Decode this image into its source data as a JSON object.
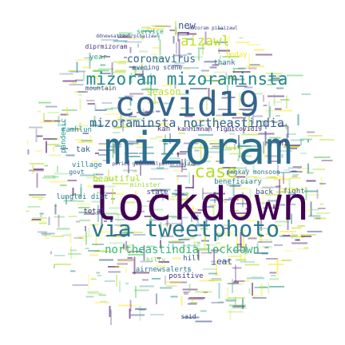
{
  "palette": [
    "#440154",
    "#3b528b",
    "#21918c",
    "#5ec962",
    "#b5de2b",
    "#fde725"
  ],
  "words": [
    {
      "text": "mizoram",
      "color": "#2c6f8e"
    },
    {
      "text": "lockdown",
      "color": "#440154"
    },
    {
      "text": "covid19",
      "color": "#33638d"
    },
    {
      "text": "via tweetphoto",
      "color": "#2a788e"
    },
    {
      "text": "mizoram mizoraminsta",
      "color": "#238a8d"
    },
    {
      "text": "mizoraminsta northeastindia",
      "color": "#33638d"
    },
    {
      "text": "case",
      "color": "#b5de2b"
    },
    {
      "text": "northeastindia lockdown",
      "color": "#35b779"
    },
    {
      "text": "coronavirus",
      "color": "#31688e"
    },
    {
      "text": "aizawl",
      "color": "#c2df23"
    },
    {
      "text": "new",
      "color": "#3b528b"
    },
    {
      "text": "season",
      "color": "#bddf26"
    },
    {
      "text": "beautiful",
      "color": "#a5db36"
    },
    {
      "text": "eat",
      "color": "#3e4989"
    },
    {
      "text": "positive",
      "color": "#46337e"
    },
    {
      "text": "hilly",
      "color": "#7ad151"
    },
    {
      "text": "hill",
      "color": "#3b528b"
    },
    {
      "text": "airnewsalerts",
      "color": "#2a788e"
    },
    {
      "text": "lunglei dist",
      "color": "#2e6e8e"
    },
    {
      "text": "state",
      "color": "#3f4788"
    },
    {
      "text": "total",
      "color": "#472d7b"
    },
    {
      "text": "govt",
      "color": "#31688e"
    },
    {
      "text": "tak",
      "color": "#38598c"
    },
    {
      "text": "village",
      "color": "#26828e"
    },
    {
      "text": "pandemic",
      "color": "#1f9e89"
    },
    {
      "text": "ramhlun",
      "color": "#21918c"
    },
    {
      "text": "kan",
      "color": "#443983"
    },
    {
      "text": "kanhimnan fightcovid19",
      "color": "#472c7a"
    },
    {
      "text": "pmgkay monsoon",
      "color": "#2c728e"
    },
    {
      "text": "beneficiary",
      "color": "#277f8e"
    },
    {
      "text": "back",
      "color": "#3e4a89"
    },
    {
      "text": "fight",
      "color": "#2f6c8e"
    },
    {
      "text": "hi",
      "color": "#481d6f"
    },
    {
      "text": "minister",
      "color": "#9fda3a"
    },
    {
      "text": "year",
      "color": "#29af7f"
    },
    {
      "text": "thank",
      "color": "#2d708e"
    },
    {
      "text": "today",
      "color": "#fde725"
    },
    {
      "text": "mountain",
      "color": "#3e4c8a"
    },
    {
      "text": "evening scene",
      "color": "#3d4d8a"
    },
    {
      "text": "diprmizoram",
      "color": "#46327e"
    },
    {
      "text": "service",
      "color": "#22a785"
    },
    {
      "text": "said",
      "color": "#3a548c"
    },
    {
      "text": "period gareebkalyanforcovid19",
      "color": "#453882"
    },
    {
      "text": "mizoram pibaizawl",
      "color": "#404387"
    },
    {
      "text": "ddnewsaizawl pibaizawl",
      "color": "#404688"
    }
  ]
}
